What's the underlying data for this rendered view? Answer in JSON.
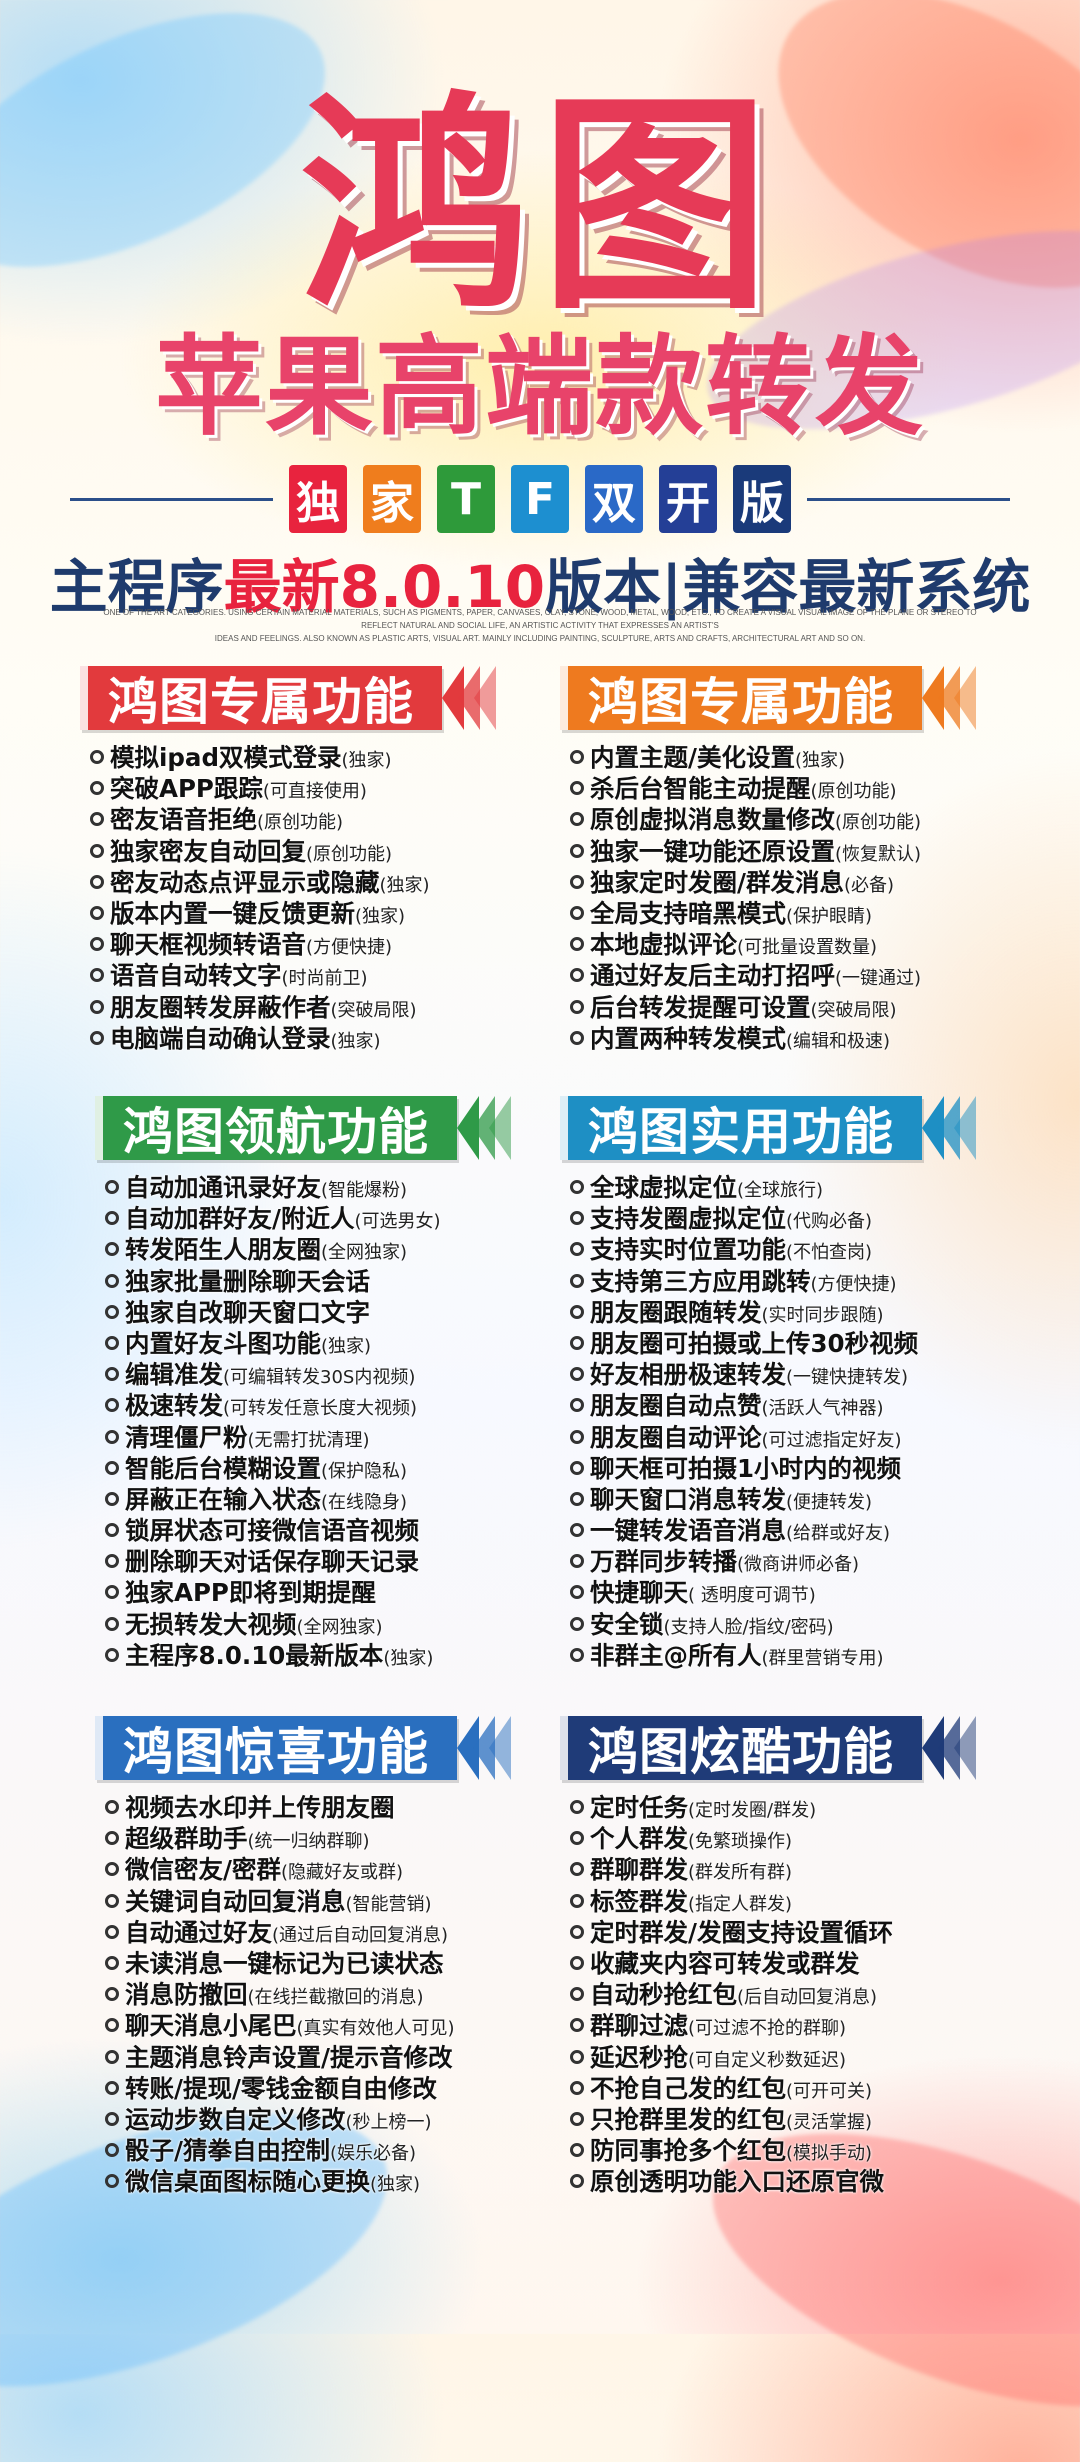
{
  "colors": {
    "title": "#e63a57",
    "sub_title": "#e8436a",
    "version_highlight": "#e8233e",
    "navy": "#1f3b6d"
  },
  "header": {
    "title": "鸿图",
    "subtitle": "苹果高端款转发",
    "badges": [
      {
        "text": "独",
        "color": "#e8233e"
      },
      {
        "text": "家",
        "color": "#ef7d1d"
      },
      {
        "text": "T",
        "color": "#2e9a3a"
      },
      {
        "text": "F",
        "color": "#1d8fd0"
      },
      {
        "text": "双",
        "color": "#2a69c7"
      },
      {
        "text": "开",
        "color": "#243f96"
      },
      {
        "text": "版",
        "color": "#1a3a7a"
      }
    ],
    "version_prefix": "主程序",
    "version_highlight": "最新8.0.10",
    "version_suffix": "版本|兼容最新系统",
    "fine_print_1": "ONE OF THE ART CATEGORIES. USING CERTAIN MATERIAL MATERIALS, SUCH AS PIGMENTS, PAPER, CANVASES, CLAY, STONE, WOOD, METAL, WOOD, ETC., TO CREATE A VISUAL VISUAL IMAGE OF THE PLANE OR STEREO TO REFLECT NATURAL AND SOCIAL LIFE, AN ARTISTIC ACTIVITY THAT EXPRESSES AN ARTIST'S",
    "fine_print_2": "IDEAS AND FEELINGS. ALSO KNOWN AS PLASTIC ARTS, VISUAL ART. MAINLY INCLUDING PAINTING, SCULPTURE, ARTS AND CRAFTS, ARCHITECTURAL ART AND SO ON."
  },
  "sections": [
    {
      "title": "鸿图专属功能",
      "color": "#e23a3d",
      "items": [
        {
          "text": "模拟ipad双模式登录",
          "note": "(独家)"
        },
        {
          "text": "突破APP跟踪",
          "note": "(可直接使用)"
        },
        {
          "text": "密友语音拒绝",
          "note": "(原创功能)"
        },
        {
          "text": "独家密友自动回复",
          "note": "(原创功能)"
        },
        {
          "text": "密友动态点评显示或隐藏",
          "note": "(独家)"
        },
        {
          "text": "版本内置一键反馈更新",
          "note": "(独家)"
        },
        {
          "text": "聊天框视频转语音",
          "note": "(方便快捷)"
        },
        {
          "text": "语音自动转文字",
          "note": "(时尚前卫)"
        },
        {
          "text": "朋友圈转发屏蔽作者",
          "note": "(突破局限)"
        },
        {
          "text": "电脑端自动确认登录",
          "note": "(独家)"
        }
      ]
    },
    {
      "title": "鸿图专属功能",
      "color": "#ee7a1f",
      "items": [
        {
          "text": "内置主题/美化设置",
          "note": "(独家)"
        },
        {
          "text": "杀后台智能主动提醒",
          "note": "(原创功能)"
        },
        {
          "text": "原创虚拟消息数量修改",
          "note": "(原创功能)"
        },
        {
          "text": "独家一键功能还原设置",
          "note": "(恢复默认)"
        },
        {
          "text": "独家定时发圈/群发消息",
          "note": "(必备)"
        },
        {
          "text": "全局支持暗黑模式",
          "note": "(保护眼睛)"
        },
        {
          "text": "本地虚拟评论",
          "note": "(可批量设置数量)"
        },
        {
          "text": "通过好友后主动打招呼",
          "note": "(一键通过)"
        },
        {
          "text": "后台转发提醒可设置",
          "note": "(突破局限)"
        },
        {
          "text": "内置两种转发模式",
          "note": "(编辑和极速)"
        }
      ]
    },
    {
      "title": "鸿图领航功能",
      "color": "#2f9a48",
      "items": [
        {
          "text": "自动加通讯录好友",
          "note": "(智能爆粉)"
        },
        {
          "text": "自动加群好友/附近人",
          "note": "(可选男女)"
        },
        {
          "text": "转发陌生人朋友圈",
          "note": "(全网独家)"
        },
        {
          "text": "独家批量删除聊天会话",
          "note": ""
        },
        {
          "text": "独家自改聊天窗口文字",
          "note": ""
        },
        {
          "text": "内置好友斗图功能",
          "note": "(独家)"
        },
        {
          "text": "编辑准发",
          "note": "(可编辑转发30S内视频)"
        },
        {
          "text": "极速转发",
          "note": "(可转发任意长度大视频)"
        },
        {
          "text": "清理僵尸粉",
          "note": "(无需打扰清理)"
        },
        {
          "text": "智能后台模糊设置",
          "note": "(保护隐私)"
        },
        {
          "text": "屏蔽正在输入状态",
          "note": "(在线隐身)"
        },
        {
          "text": "锁屏状态可接微信语音视频",
          "note": ""
        },
        {
          "text": "删除聊天对话保存聊天记录",
          "note": ""
        },
        {
          "text": "独家APP即将到期提醒",
          "note": ""
        },
        {
          "text": "无损转发大视频",
          "note": "(全网独家)"
        },
        {
          "text": "主程序8.0.10最新版本",
          "note": "(独家)"
        }
      ]
    },
    {
      "title": "鸿图实用功能",
      "color": "#1e8fc4",
      "items": [
        {
          "text": "全球虚拟定位",
          "note": "(全球旅行)"
        },
        {
          "text": "支持发圈虚拟定位",
          "note": "(代购必备)"
        },
        {
          "text": "支持实时位置功能",
          "note": "(不怕查岗)"
        },
        {
          "text": "支持第三方应用跳转",
          "note": "(方便快捷)"
        },
        {
          "text": "朋友圈跟随转发",
          "note": "(实时同步跟随)"
        },
        {
          "text": "朋友圈可拍摄或上传30秒视频",
          "note": ""
        },
        {
          "text": "好友相册极速转发",
          "note": "(一键快捷转发)"
        },
        {
          "text": "朋友圈自动点赞",
          "note": "(活跃人气神器)"
        },
        {
          "text": "朋友圈自动评论",
          "note": "(可过滤指定好友)"
        },
        {
          "text": "聊天框可拍摄1小时内的视频",
          "note": ""
        },
        {
          "text": "聊天窗口消息转发",
          "note": "(便捷转发)"
        },
        {
          "text": "一键转发语音消息",
          "note": "(给群或好友)"
        },
        {
          "text": "万群同步转播",
          "note": "(微商讲师必备)"
        },
        {
          "text": "快捷聊天",
          "note": "( 透明度可调节)"
        },
        {
          "text": "安全锁",
          "note": "(支持人脸/指纹/密码)"
        },
        {
          "text": "非群主@所有人",
          "note": "(群里营销专用)"
        }
      ]
    },
    {
      "title": "鸿图惊喜功能",
      "color": "#2a6fbf",
      "items": [
        {
          "text": "视频去水印并上传朋友圈",
          "note": ""
        },
        {
          "text": "超级群助手",
          "note": "(统一归纳群聊)"
        },
        {
          "text": "微信密友/密群",
          "note": "(隐藏好友或群)"
        },
        {
          "text": "关键词自动回复消息",
          "note": "(智能营销)"
        },
        {
          "text": "自动通过好友",
          "note": "(通过后自动回复消息)"
        },
        {
          "text": "未读消息一键标记为已读状态",
          "note": ""
        },
        {
          "text": "消息防撤回",
          "note": "(在线拦截撤回的消息)"
        },
        {
          "text": "聊天消息小尾巴",
          "note": "(真实有效他人可见)"
        },
        {
          "text": "主题消息铃声设置/提示音修改",
          "note": ""
        },
        {
          "text": "转账/提现/零钱金额自由修改",
          "note": ""
        },
        {
          "text": "运动步数自定义修改",
          "note": "(秒上榜一)"
        },
        {
          "text": "骰子/猜拳自由控制",
          "note": "(娱乐必备)"
        },
        {
          "text": "微信桌面图标随心更换",
          "note": "(独家)"
        }
      ]
    },
    {
      "title": "鸿图炫酷功能",
      "color": "#1f3b78",
      "items": [
        {
          "text": "定时任务",
          "note": "(定时发圈/群发)"
        },
        {
          "text": "个人群发",
          "note": "(免繁琐操作)"
        },
        {
          "text": "群聊群发",
          "note": "(群发所有群)"
        },
        {
          "text": "标签群发",
          "note": "(指定人群发)"
        },
        {
          "text": "定时群发/发圈支持设置循环",
          "note": ""
        },
        {
          "text": "收藏夹内容可转发或群发",
          "note": ""
        },
        {
          "text": "自动秒抢红包",
          "note": "(后自动回复消息)"
        },
        {
          "text": "群聊过滤",
          "note": "(可过滤不抢的群聊)"
        },
        {
          "text": "延迟秒抢",
          "note": "(可自定义秒数延迟)"
        },
        {
          "text": "不抢自己发的红包",
          "note": "(可开可关)"
        },
        {
          "text": "只抢群里发的红包",
          "note": "(灵活掌握)"
        },
        {
          "text": "防同事抢多个红包",
          "note": "(模拟手动)"
        },
        {
          "text": "原创透明功能入口还原官微",
          "note": ""
        }
      ]
    }
  ]
}
